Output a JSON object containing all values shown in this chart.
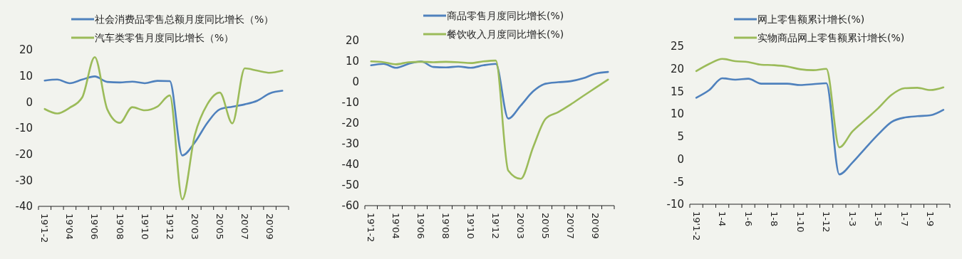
{
  "chart_data": [
    {
      "type": "line",
      "categories": [
        "19'1-2",
        null,
        "19'04",
        null,
        "19'06",
        null,
        "19'08",
        null,
        "19'10",
        null,
        "19'12",
        null,
        "20'03",
        null,
        "20'05",
        null,
        "20'07",
        null,
        "20'09",
        null
      ],
      "ylim": [
        -40,
        20
      ],
      "yticks": [
        -40,
        -30,
        -20,
        -10,
        0,
        10,
        20
      ],
      "grid": false,
      "legend": "top",
      "series": [
        {
          "name": "社会消费品零售总额月度同比增长（%）",
          "color": "#4f81bd",
          "values": [
            8.2,
            8.6,
            7.2,
            8.6,
            9.8,
            7.7,
            7.5,
            7.8,
            7.2,
            8.1,
            8.0,
            -20.5,
            -15.5,
            -8.0,
            -2.8,
            -1.8,
            -0.9,
            0.5,
            3.3,
            4.3
          ]
        },
        {
          "name": "汽车类零售月度同比增长（%）",
          "color": "#9bbb59",
          "values": [
            -2.7,
            -4.4,
            -2.2,
            1.8,
            17.2,
            -2.8,
            -8.0,
            -2.0,
            -3.2,
            -1.8,
            2.5,
            -37.3,
            -12.7,
            -0.9,
            3.6,
            -8.2,
            12.9,
            12.0,
            11.2,
            12.0
          ]
        }
      ]
    },
    {
      "type": "line",
      "categories": [
        "19'1-2",
        null,
        "19'04",
        null,
        "19'06",
        null,
        "19'08",
        null,
        "19'10",
        null,
        "19'12",
        null,
        "20'03",
        null,
        "20'05",
        null,
        "20'07",
        null,
        "20'09",
        null
      ],
      "ylim": [
        -60,
        20
      ],
      "yticks": [
        -60,
        -50,
        -40,
        -30,
        -20,
        -10,
        0,
        10,
        20
      ],
      "grid": false,
      "legend": "top",
      "series": [
        {
          "name": "商品零售月度同比增长(%)",
          "color": "#4f81bd",
          "values": [
            8.0,
            8.7,
            6.8,
            8.7,
            9.9,
            7.2,
            7.0,
            7.4,
            6.8,
            8.0,
            8.7,
            -17.8,
            -11.5,
            -4.6,
            -0.9,
            -0.2,
            0.3,
            1.7,
            4.0,
            4.8
          ]
        },
        {
          "name": "餐饮收入月度同比增长(%)",
          "color": "#9bbb59",
          "values": [
            9.9,
            9.5,
            8.5,
            9.5,
            9.7,
            9.5,
            9.7,
            9.5,
            9.1,
            9.9,
            10.3,
            -43.0,
            -47.0,
            -31.6,
            -17.9,
            -14.7,
            -11.0,
            -6.9,
            -2.9,
            1.1
          ]
        }
      ]
    },
    {
      "type": "line",
      "categories": [
        "19'1-2",
        null,
        "1-4",
        null,
        "1-6",
        null,
        "1-8",
        null,
        "1-10",
        null,
        "1-12",
        null,
        "1-3",
        null,
        "1-5",
        null,
        "1-7",
        null,
        "1-9",
        null
      ],
      "ylim": [
        -10,
        25
      ],
      "yticks": [
        -10,
        -5,
        0,
        5,
        10,
        15,
        20,
        25
      ],
      "grid": false,
      "legend": "top",
      "series": [
        {
          "name": "网上零售额累计增长(%)",
          "color": "#4f81bd",
          "values": [
            13.6,
            15.3,
            17.9,
            17.6,
            17.8,
            16.7,
            16.7,
            16.7,
            16.4,
            16.6,
            16.8,
            -3.4,
            -0.8,
            2.4,
            5.5,
            8.2,
            9.2,
            9.5,
            9.7,
            10.9
          ]
        },
        {
          "name": "实物商品网上零售额累计增长(%)",
          "color": "#9bbb59",
          "values": [
            19.5,
            21.1,
            22.2,
            21.7,
            21.5,
            20.9,
            20.8,
            20.5,
            19.9,
            19.7,
            20.0,
            2.6,
            6.1,
            8.7,
            11.3,
            14.2,
            15.7,
            15.8,
            15.3,
            15.9
          ]
        }
      ]
    }
  ]
}
